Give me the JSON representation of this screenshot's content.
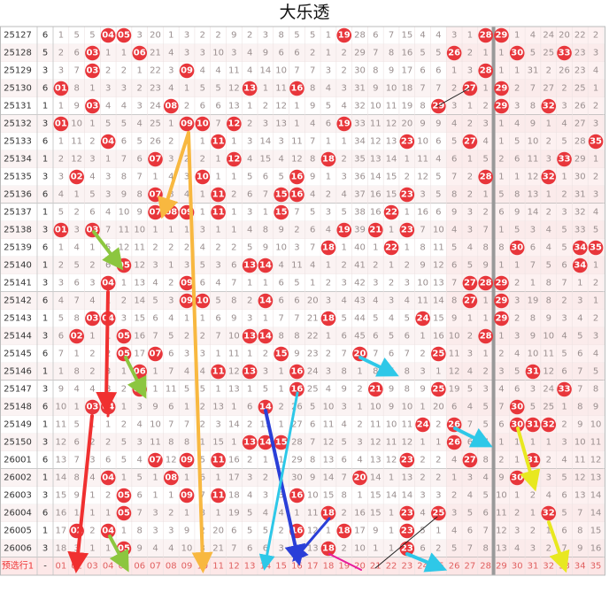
{
  "title": "大乐透",
  "rows": [
    {
      "period": 25127,
      "count": 6,
      "cells": [
        1,
        5,
        5,
        "04",
        "05",
        3,
        20,
        1,
        3,
        2,
        2,
        9,
        2,
        3,
        8,
        5,
        5,
        1,
        "19",
        28,
        6,
        7,
        15,
        4,
        4,
        3,
        1,
        "28",
        "29",
        1,
        4,
        24,
        20,
        22,
        2
      ]
    },
    {
      "period": 25128,
      "count": 5,
      "cells": [
        2,
        6,
        "03",
        1,
        1,
        "06",
        21,
        4,
        3,
        3,
        10,
        3,
        4,
        9,
        6,
        6,
        2,
        1,
        2,
        29,
        7,
        8,
        16,
        5,
        5,
        "26",
        2,
        1,
        1,
        "30",
        5,
        25,
        "33",
        23,
        3
      ]
    },
    {
      "period": 25129,
      "count": 3,
      "cells": [
        3,
        7,
        "03",
        2,
        2,
        1,
        22,
        3,
        "09",
        4,
        4,
        11,
        4,
        14,
        10,
        7,
        7,
        3,
        2,
        30,
        8,
        9,
        17,
        6,
        6,
        1,
        3,
        "28",
        1,
        1,
        31,
        2,
        26,
        23,
        4
      ]
    },
    {
      "period": 25130,
      "count": 6,
      "cells": [
        "01",
        8,
        1,
        3,
        3,
        2,
        23,
        4,
        1,
        5,
        5,
        12,
        "13",
        1,
        11,
        "16",
        8,
        4,
        3,
        31,
        9,
        10,
        18,
        7,
        7,
        2,
        "27",
        1,
        "29",
        2,
        7,
        27,
        2,
        25,
        1
      ]
    },
    {
      "period": 25131,
      "count": 1,
      "cells": [
        1,
        9,
        "03",
        4,
        4,
        3,
        24,
        "08",
        2,
        6,
        6,
        13,
        1,
        2,
        12,
        1,
        9,
        5,
        4,
        32,
        10,
        11,
        19,
        8,
        "29",
        3,
        1,
        2,
        "29",
        3,
        8,
        "32",
        3,
        26,
        2
      ]
    },
    {
      "period": 25132,
      "count": 3,
      "cells": [
        "01",
        10,
        1,
        5,
        5,
        4,
        25,
        1,
        "09",
        "10",
        7,
        "12",
        2,
        3,
        13,
        1,
        4,
        6,
        "19",
        33,
        11,
        12,
        20,
        9,
        9,
        4,
        2,
        3,
        1,
        4,
        9,
        1,
        4,
        27,
        3
      ]
    },
    {
      "period": 25133,
      "count": 6,
      "cells": [
        1,
        11,
        2,
        "04",
        6,
        5,
        26,
        2,
        1,
        1,
        "11",
        1,
        3,
        14,
        3,
        11,
        7,
        1,
        1,
        34,
        12,
        13,
        "23",
        10,
        6,
        5,
        "27",
        4,
        1,
        5,
        10,
        2,
        5,
        28,
        "35"
      ]
    },
    {
      "period": 25134,
      "count": 1,
      "cells": [
        2,
        12,
        3,
        1,
        7,
        6,
        "07",
        3,
        2,
        2,
        1,
        "12",
        4,
        15,
        4,
        12,
        8,
        "18",
        2,
        35,
        13,
        14,
        1,
        11,
        4,
        6,
        1,
        5,
        2,
        6,
        11,
        3,
        "33",
        29,
        1
      ]
    },
    {
      "period": 25135,
      "count": 3,
      "cells": [
        3,
        "02",
        4,
        3,
        8,
        7,
        1,
        4,
        3,
        "10",
        1,
        1,
        5,
        6,
        5,
        "16",
        9,
        1,
        3,
        36,
        14,
        15,
        2,
        12,
        5,
        7,
        2,
        "28",
        1,
        1,
        12,
        "32",
        1,
        30,
        2
      ]
    },
    {
      "period": 25136,
      "count": 6,
      "cells": [
        4,
        1,
        5,
        3,
        9,
        8,
        "07",
        8,
        4,
        1,
        "11",
        2,
        6,
        7,
        "15",
        "16",
        4,
        2,
        4,
        37,
        16,
        15,
        "23",
        3,
        5,
        8,
        2,
        1,
        5,
        8,
        13,
        1,
        2,
        31,
        3
      ]
    },
    {
      "period": 25137,
      "count": 1,
      "cells": [
        5,
        2,
        6,
        4,
        10,
        9,
        "07",
        "08",
        "09",
        1,
        "11",
        1,
        3,
        1,
        "15",
        7,
        5,
        3,
        5,
        38,
        16,
        "22",
        1,
        16,
        6,
        9,
        3,
        2,
        6,
        9,
        14,
        2,
        3,
        32,
        4
      ]
    },
    {
      "period": 25138,
      "count": 3,
      "cells": [
        "01",
        3,
        "03",
        7,
        11,
        10,
        1,
        1,
        1,
        3,
        1,
        1,
        4,
        8,
        9,
        2,
        6,
        4,
        "19",
        39,
        "21",
        1,
        "23",
        7,
        10,
        4,
        3,
        7,
        1,
        5,
        3,
        4,
        5,
        33,
        5
      ]
    },
    {
      "period": 25139,
      "count": 6,
      "cells": [
        1,
        4,
        1,
        5,
        12,
        11,
        2,
        2,
        2,
        4,
        2,
        2,
        5,
        9,
        10,
        3,
        7,
        "18",
        1,
        40,
        1,
        "22",
        1,
        8,
        11,
        5,
        4,
        8,
        8,
        "30",
        6,
        4,
        5,
        "34",
        "35"
      ]
    },
    {
      "period": 25140,
      "count": 1,
      "cells": [
        2,
        5,
        2,
        6,
        "05",
        12,
        3,
        1,
        3,
        5,
        3,
        6,
        "13",
        "14",
        4,
        11,
        4,
        1,
        2,
        41,
        2,
        1,
        2,
        9,
        12,
        6,
        5,
        9,
        1,
        1,
        7,
        5,
        6,
        "34",
        1
      ]
    },
    {
      "period": 25141,
      "count": 3,
      "cells": [
        3,
        6,
        3,
        "04",
        1,
        13,
        4,
        2,
        "09",
        6,
        4,
        7,
        1,
        1,
        6,
        5,
        1,
        2,
        3,
        42,
        3,
        2,
        3,
        10,
        13,
        7,
        "27",
        "28",
        "29",
        2,
        1,
        8,
        7,
        1,
        2
      ]
    },
    {
      "period": 25142,
      "count": 6,
      "cells": [
        4,
        7,
        4,
        1,
        2,
        14,
        5,
        3,
        "09",
        "10",
        5,
        8,
        2,
        "14",
        6,
        6,
        20,
        3,
        4,
        43,
        4,
        3,
        4,
        11,
        14,
        8,
        "27",
        1,
        "29",
        3,
        19,
        8,
        2,
        3,
        1
      ]
    },
    {
      "period": 25143,
      "count": 1,
      "cells": [
        5,
        8,
        "03",
        "04",
        3,
        15,
        6,
        4,
        1,
        1,
        6,
        9,
        3,
        1,
        7,
        7,
        21,
        "18",
        5,
        44,
        5,
        4,
        5,
        "24",
        15,
        9,
        1,
        1,
        "29",
        2,
        8,
        9,
        3,
        4,
        2
      ]
    },
    {
      "period": 25144,
      "count": 3,
      "cells": [
        6,
        "02",
        1,
        1,
        "05",
        16,
        7,
        5,
        2,
        2,
        7,
        10,
        "13",
        "14",
        8,
        8,
        22,
        1,
        6,
        45,
        6,
        5,
        6,
        1,
        16,
        10,
        2,
        "28",
        1,
        3,
        9,
        10,
        4,
        5,
        3
      ]
    },
    {
      "period": 25145,
      "count": 6,
      "cells": [
        7,
        1,
        2,
        2,
        "05",
        17,
        "07",
        6,
        3,
        3,
        1,
        11,
        1,
        2,
        "15",
        9,
        23,
        2,
        7,
        "20",
        7,
        6,
        7,
        2,
        "25",
        11,
        3,
        1,
        2,
        4,
        10,
        11,
        5,
        6,
        4
      ]
    },
    {
      "period": 25146,
      "count": 1,
      "cells": [
        1,
        8,
        2,
        3,
        1,
        "06",
        1,
        7,
        4,
        4,
        "11",
        12,
        "13",
        3,
        1,
        "16",
        24,
        3,
        8,
        1,
        8,
        7,
        8,
        3,
        1,
        12,
        4,
        2,
        3,
        5,
        "31",
        12,
        6,
        7,
        5
      ]
    },
    {
      "period": 25147,
      "count": 3,
      "cells": [
        9,
        4,
        4,
        8,
        2,
        "06",
        1,
        11,
        5,
        5,
        1,
        13,
        1,
        5,
        1,
        "16",
        25,
        4,
        9,
        2,
        "21",
        9,
        8,
        9,
        "25",
        19,
        5,
        3,
        4,
        6,
        3,
        24,
        "33",
        7,
        8
      ]
    },
    {
      "period": 25148,
      "count": 6,
      "cells": [
        10,
        1,
        "03",
        "04",
        1,
        3,
        9,
        6,
        1,
        2,
        13,
        1,
        6,
        "14",
        2,
        26,
        5,
        10,
        3,
        1,
        10,
        9,
        10,
        1,
        20,
        6,
        4,
        5,
        7,
        "30",
        5,
        25,
        1,
        8,
        9
      ]
    },
    {
      "period": 25149,
      "count": 1,
      "cells": [
        11,
        5,
        1,
        1,
        2,
        4,
        10,
        7,
        7,
        2,
        3,
        14,
        2,
        15,
        1,
        27,
        6,
        11,
        4,
        2,
        11,
        10,
        11,
        "24",
        2,
        "26",
        7,
        5,
        6,
        "30",
        "31",
        "32",
        2,
        9,
        10
      ]
    },
    {
      "period": 25150,
      "count": 3,
      "cells": [
        12,
        6,
        2,
        2,
        5,
        3,
        11,
        8,
        8,
        1,
        15,
        1,
        "13",
        "14",
        "15",
        28,
        7,
        12,
        5,
        3,
        12,
        11,
        12,
        1,
        1,
        "26",
        6,
        7,
        1,
        1,
        1,
        1,
        3,
        10,
        11
      ]
    },
    {
      "period": 26001,
      "count": 6,
      "cells": [
        13,
        7,
        3,
        6,
        5,
        4,
        "07",
        12,
        "09",
        5,
        "11",
        16,
        2,
        1,
        1,
        29,
        8,
        13,
        6,
        4,
        13,
        12,
        "23",
        2,
        2,
        4,
        "27",
        8,
        2,
        1,
        "31",
        2,
        4,
        11,
        12
      ]
    },
    {
      "period": 26002,
      "count": 1,
      "cells": [
        14,
        8,
        4,
        "04",
        1,
        5,
        1,
        "08",
        1,
        6,
        1,
        17,
        3,
        2,
        2,
        30,
        9,
        14,
        7,
        "20",
        14,
        1,
        13,
        2,
        2,
        1,
        3,
        4,
        9,
        "30",
        1,
        3,
        5,
        12,
        13
      ]
    },
    {
      "period": 26003,
      "count": 3,
      "cells": [
        15,
        9,
        1,
        2,
        "05",
        6,
        1,
        1,
        "09",
        7,
        "11",
        18,
        4,
        3,
        3,
        "16",
        10,
        15,
        8,
        1,
        15,
        14,
        14,
        3,
        3,
        2,
        4,
        5,
        10,
        1,
        2,
        4,
        6,
        13,
        14
      ]
    },
    {
      "period": 26004,
      "count": 6,
      "cells": [
        16,
        1,
        1,
        1,
        "05",
        7,
        3,
        2,
        1,
        8,
        1,
        19,
        5,
        4,
        4,
        1,
        11,
        "18",
        2,
        16,
        15,
        1,
        "23",
        4,
        "25",
        3,
        5,
        6,
        11,
        2,
        1,
        "32",
        5,
        7,
        14
      ]
    },
    {
      "period": 26005,
      "count": 1,
      "cells": [
        17,
        "02",
        2,
        "04",
        1,
        8,
        3,
        3,
        9,
        2,
        20,
        6,
        5,
        5,
        2,
        "16",
        12,
        1,
        "18",
        17,
        9,
        1,
        "23",
        5,
        1,
        4,
        6,
        7,
        12,
        3,
        2,
        1,
        6,
        8,
        15
      ]
    },
    {
      "period": 26006,
      "count": 3,
      "cells": [
        18,
        3,
        1,
        1,
        "05",
        9,
        4,
        4,
        10,
        3,
        21,
        7,
        6,
        6,
        3,
        1,
        13,
        "18",
        2,
        10,
        1,
        1,
        "23",
        6,
        2,
        5,
        7,
        8,
        13,
        4,
        3,
        2,
        7,
        9,
        16
      ]
    }
  ],
  "preselect": {
    "label": "预选行1",
    "count": "-",
    "cells": [
      "01",
      "02",
      "03",
      "04",
      "05",
      "06",
      "07",
      "08",
      "09",
      "10",
      "11",
      "12",
      "13",
      "14",
      "15",
      "16",
      "17",
      "18",
      "19",
      "20",
      "21",
      "22",
      "23",
      "24",
      "25",
      "26",
      "27",
      "28",
      "29",
      "30",
      "31",
      "32",
      "33",
      "34",
      "35"
    ]
  }
}
